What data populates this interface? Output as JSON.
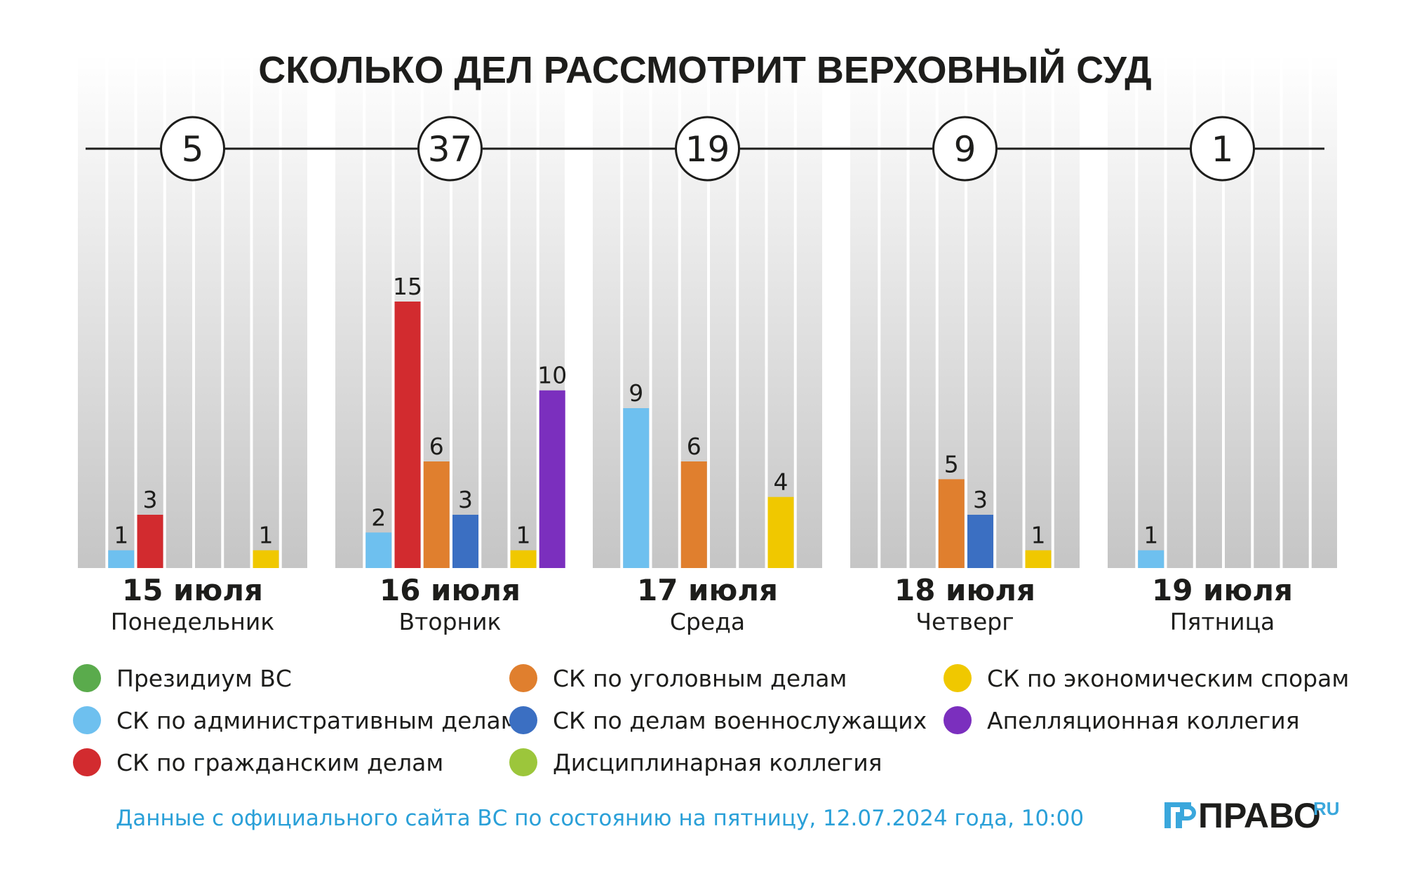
{
  "chart_data": {
    "type": "bar",
    "title": "СКОЛЬКО ДЕЛ РАССМОТРИТ ВЕРХОВНЫЙ СУД",
    "ylim": [
      0,
      15
    ],
    "series": [
      {
        "key": "presidium",
        "name": "Президиум ВС",
        "color": "#5aab4c"
      },
      {
        "key": "admin",
        "name": "СК по административным делам",
        "color": "#6ec0ef"
      },
      {
        "key": "civil",
        "name": "СК по гражданским делам",
        "color": "#d22b2f"
      },
      {
        "key": "criminal",
        "name": "СК по уголовным делам",
        "color": "#e07f2e"
      },
      {
        "key": "military",
        "name": "СК по делам военнослужащих",
        "color": "#3b6fc2"
      },
      {
        "key": "discipline",
        "name": "Дисциплинарная коллегия",
        "color": "#9cc63b"
      },
      {
        "key": "economic",
        "name": "СК по экономическим спорам",
        "color": "#f0c800"
      },
      {
        "key": "appeal",
        "name": "Апелляционная коллегия",
        "color": "#7b2fbe"
      }
    ],
    "days": [
      {
        "total": "5",
        "date": "15 июля",
        "weekday": "Понедельник",
        "values": [
          0,
          1,
          3,
          0,
          0,
          0,
          1,
          0
        ]
      },
      {
        "total": "37",
        "date": "16 июля",
        "weekday": "Вторник",
        "values": [
          0,
          2,
          15,
          6,
          3,
          0,
          1,
          10
        ]
      },
      {
        "total": "19",
        "date": "17 июля",
        "weekday": "Среда",
        "values": [
          0,
          9,
          0,
          6,
          0,
          0,
          4,
          0
        ]
      },
      {
        "total": "9",
        "date": "18 июля",
        "weekday": "Четверг",
        "values": [
          0,
          0,
          0,
          5,
          3,
          0,
          1,
          0
        ]
      },
      {
        "total": "1",
        "date": "19 июля",
        "weekday": "Пятница",
        "values": [
          0,
          1,
          0,
          0,
          0,
          0,
          0,
          0
        ]
      }
    ],
    "legend_columns": [
      [
        "presidium",
        "admin",
        "civil"
      ],
      [
        "criminal",
        "military",
        "discipline"
      ],
      [
        "economic",
        "appeal"
      ]
    ]
  },
  "footer": {
    "source": "Данные с официального сайта ВС по состоянию на пятницу, 12.07.2024 года, 10:00",
    "source_color": "#2aa0d8"
  },
  "logo": {
    "name": "ПРАВО",
    "suffix": "RU",
    "accent": "#3aa7dc"
  }
}
